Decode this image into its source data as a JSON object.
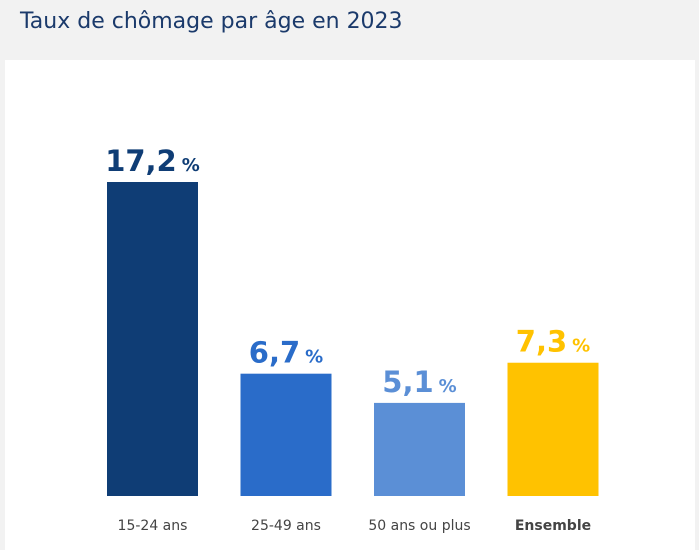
{
  "title": "Taux de chômage par âge en 2023",
  "colors": {
    "background": "#f2f2f2",
    "panel": "#ffffff",
    "title": "#1b3a6b"
  },
  "chart_data": {
    "type": "bar",
    "categories": [
      "15-24 ans",
      "25-49 ans",
      "50 ans ou plus",
      "Ensemble"
    ],
    "values": [
      17.2,
      6.7,
      5.1,
      7.3
    ],
    "value_labels": [
      "17,2",
      "6,7",
      "5,1",
      "7,3"
    ],
    "unit": "%",
    "colors": [
      "#0f3d75",
      "#2a6cc9",
      "#5b8fd6",
      "#ffc200"
    ],
    "bold_categories": [
      false,
      false,
      false,
      true
    ],
    "ylim": [
      0,
      17.2
    ],
    "grid": false,
    "legend": "none"
  }
}
